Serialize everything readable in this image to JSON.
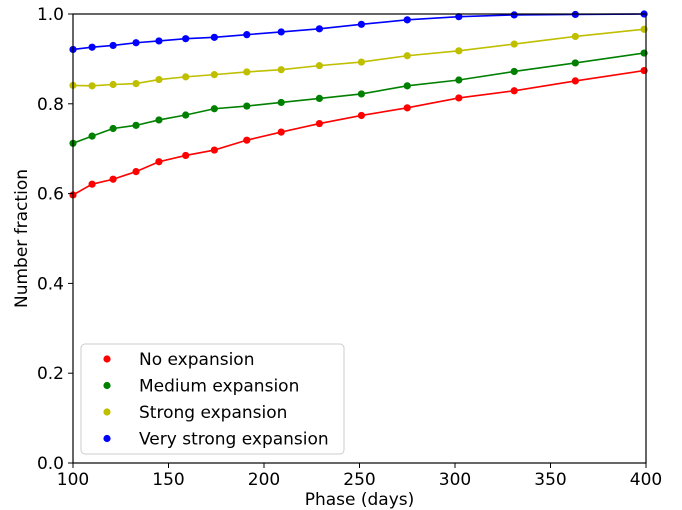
{
  "chart_data": {
    "type": "line",
    "xlabel": "Phase (days)",
    "ylabel": "Number fraction",
    "xlim": [
      100,
      400
    ],
    "ylim": [
      0.0,
      1.0
    ],
    "xticks": [
      100,
      150,
      200,
      250,
      300,
      350,
      400
    ],
    "yticks": [
      0.0,
      0.2,
      0.4,
      0.6,
      0.8,
      1.0
    ],
    "xtick_labels": [
      "100",
      "150",
      "200",
      "250",
      "300",
      "350",
      "400"
    ],
    "ytick_labels": [
      "0.0",
      "0.2",
      "0.4",
      "0.6",
      "0.8",
      "1.0"
    ],
    "grid": false,
    "legend_position": "lower-left",
    "x": [
      100,
      110,
      121,
      133,
      145,
      159,
      174,
      191,
      209,
      229,
      251,
      275,
      302,
      331,
      363,
      399
    ],
    "series": [
      {
        "name": "No expansion",
        "color": "#ff0000",
        "values": [
          0.597,
          0.621,
          0.632,
          0.649,
          0.671,
          0.685,
          0.697,
          0.719,
          0.737,
          0.756,
          0.774,
          0.791,
          0.813,
          0.829,
          0.851,
          0.874
        ]
      },
      {
        "name": "Medium expansion",
        "color": "#008000",
        "values": [
          0.712,
          0.728,
          0.745,
          0.752,
          0.764,
          0.775,
          0.789,
          0.795,
          0.803,
          0.812,
          0.822,
          0.84,
          0.853,
          0.872,
          0.891,
          0.913
        ]
      },
      {
        "name": "Strong expansion",
        "color": "#bfbf00",
        "values": [
          0.841,
          0.84,
          0.843,
          0.845,
          0.854,
          0.86,
          0.865,
          0.871,
          0.876,
          0.885,
          0.893,
          0.907,
          0.918,
          0.933,
          0.95,
          0.966
        ]
      },
      {
        "name": "Very strong expansion",
        "color": "#0000ff",
        "values": [
          0.921,
          0.926,
          0.93,
          0.936,
          0.94,
          0.945,
          0.948,
          0.954,
          0.96,
          0.967,
          0.977,
          0.987,
          0.994,
          0.998,
          0.999,
          1.0
        ]
      }
    ]
  }
}
